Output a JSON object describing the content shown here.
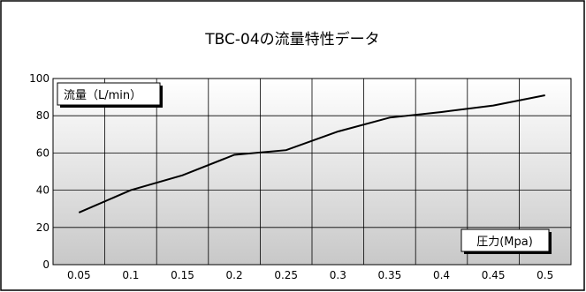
{
  "chart_data": {
    "type": "line",
    "title": "TBC-04の流量特性データ",
    "ylabel": "流量（L/min）",
    "xlabel": "圧力(Mpa)",
    "categories": [
      "0.05",
      "0.1",
      "0.15",
      "0.2",
      "0.25",
      "0.3",
      "0.35",
      "0.4",
      "0.45",
      "0.5"
    ],
    "yticks": [
      "0",
      "20",
      "40",
      "60",
      "80",
      "100"
    ],
    "ylim": [
      0,
      100
    ],
    "grid": true,
    "series": [
      {
        "values": [
          28,
          40,
          48,
          59,
          61.5,
          71.5,
          79,
          82,
          85.5,
          91
        ],
        "color": "#000000"
      }
    ],
    "background_gradient": [
      "#ffffff",
      "#c8c8c8"
    ]
  }
}
